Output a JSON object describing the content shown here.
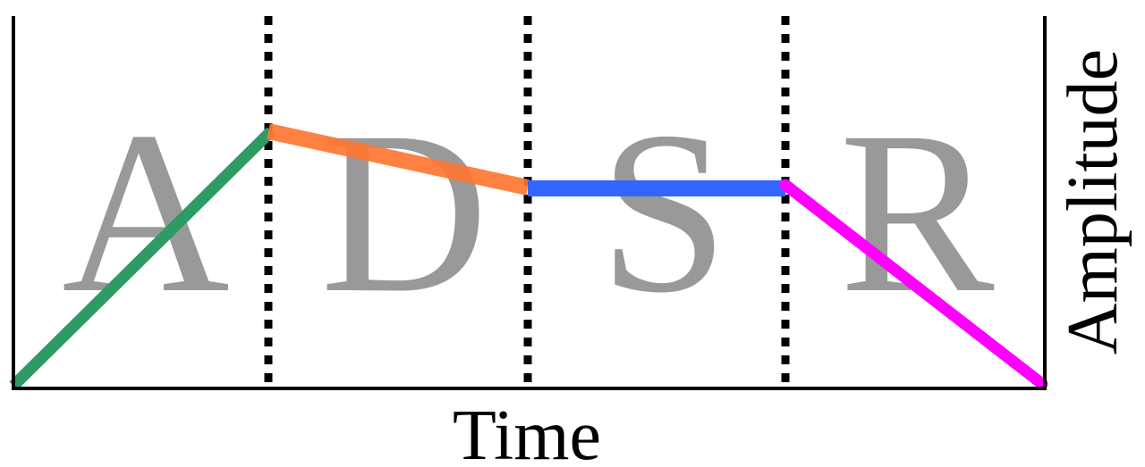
{
  "labels": {
    "x_axis": "Time",
    "y_axis": "Amplitude"
  },
  "phases": [
    {
      "letter": "A",
      "color": "#2e9a66"
    },
    {
      "letter": "D",
      "color": "#ff7733"
    },
    {
      "letter": "S",
      "color": "#3366ff"
    },
    {
      "letter": "R",
      "color": "#ff00ff"
    }
  ],
  "colors": {
    "axis": "#000000",
    "phase_letter": "#999999",
    "divider": "#000000"
  }
}
